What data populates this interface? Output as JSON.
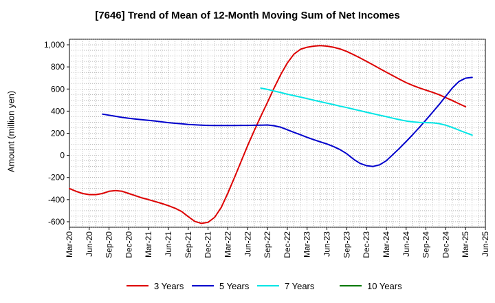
{
  "chart_data": {
    "type": "line",
    "title": "[7646]  Trend of Mean of 12-Month Moving Sum of Net Incomes",
    "ylabel": "Amount (million yen)",
    "xlabel": "",
    "ylim": [
      -650,
      1050
    ],
    "yticks": [
      -600,
      -400,
      -200,
      0,
      200,
      400,
      600,
      800,
      "1,000"
    ],
    "ytick_values": [
      -600,
      -400,
      -200,
      0,
      200,
      400,
      600,
      800,
      1000
    ],
    "xticks": [
      "Mar-20",
      "Jun-20",
      "Sep-20",
      "Dec-20",
      "Mar-21",
      "Jun-21",
      "Sep-21",
      "Dec-21",
      "Mar-22",
      "Jun-22",
      "Sep-22",
      "Dec-22",
      "Mar-23",
      "Jun-23",
      "Sep-23",
      "Dec-23",
      "Mar-24",
      "Jun-24",
      "Sep-24",
      "Dec-24",
      "Mar-25",
      "Jun-25"
    ],
    "grid": true,
    "legend_position": "bottom",
    "series": [
      {
        "name": "3 Years",
        "color": "#dd0000",
        "points": [
          [
            "Mar-20",
            -300
          ],
          [
            "Apr-20",
            -325
          ],
          [
            "May-20",
            -345
          ],
          [
            "Jun-20",
            -355
          ],
          [
            "Jul-20",
            -355
          ],
          [
            "Aug-20",
            -345
          ],
          [
            "Sep-20",
            -325
          ],
          [
            "Oct-20",
            -318
          ],
          [
            "Nov-20",
            -325
          ],
          [
            "Dec-20",
            -345
          ],
          [
            "Jan-21",
            -365
          ],
          [
            "Feb-21",
            -385
          ],
          [
            "Mar-21",
            -400
          ],
          [
            "Apr-21",
            -418
          ],
          [
            "May-21",
            -435
          ],
          [
            "Jun-21",
            -455
          ],
          [
            "Jul-21",
            -478
          ],
          [
            "Aug-21",
            -508
          ],
          [
            "Sep-21",
            -555
          ],
          [
            "Oct-21",
            -598
          ],
          [
            "Nov-21",
            -615
          ],
          [
            "Dec-21",
            -605
          ],
          [
            "Jan-22",
            -560
          ],
          [
            "Feb-22",
            -470
          ],
          [
            "Mar-22",
            -340
          ],
          [
            "Apr-22",
            -200
          ],
          [
            "May-22",
            -55
          ],
          [
            "Jun-22",
            90
          ],
          [
            "Jul-22",
            225
          ],
          [
            "Aug-22",
            355
          ],
          [
            "Sep-22",
            480
          ],
          [
            "Oct-22",
            610
          ],
          [
            "Nov-22",
            730
          ],
          [
            "Dec-22",
            835
          ],
          [
            "Jan-23",
            915
          ],
          [
            "Feb-23",
            960
          ],
          [
            "Mar-23",
            978
          ],
          [
            "Apr-23",
            988
          ],
          [
            "May-23",
            992
          ],
          [
            "Jun-23",
            988
          ],
          [
            "Jul-23",
            978
          ],
          [
            "Aug-23",
            962
          ],
          [
            "Sep-23",
            940
          ],
          [
            "Oct-23",
            912
          ],
          [
            "Nov-23",
            882
          ],
          [
            "Dec-23",
            850
          ],
          [
            "Jan-24",
            818
          ],
          [
            "Feb-24",
            785
          ],
          [
            "Mar-24",
            752
          ],
          [
            "Apr-24",
            720
          ],
          [
            "May-24",
            688
          ],
          [
            "Jun-24",
            658
          ],
          [
            "Jul-24",
            632
          ],
          [
            "Aug-24",
            610
          ],
          [
            "Sep-24",
            590
          ],
          [
            "Oct-24",
            570
          ],
          [
            "Nov-24",
            548
          ],
          [
            "Dec-24",
            522
          ],
          [
            "Jan-25",
            495
          ],
          [
            "Feb-25",
            467
          ],
          [
            "Mar-25",
            440
          ]
        ]
      },
      {
        "name": "5 Years",
        "color": "#0000cc",
        "points": [
          [
            "Aug-20",
            373
          ],
          [
            "Sep-20",
            363
          ],
          [
            "Oct-20",
            353
          ],
          [
            "Nov-20",
            343
          ],
          [
            "Dec-20",
            335
          ],
          [
            "Jan-21",
            328
          ],
          [
            "Feb-21",
            322
          ],
          [
            "Mar-21",
            317
          ],
          [
            "Apr-21",
            310
          ],
          [
            "May-21",
            303
          ],
          [
            "Jun-21",
            296
          ],
          [
            "Jul-21",
            290
          ],
          [
            "Aug-21",
            285
          ],
          [
            "Sep-21",
            280
          ],
          [
            "Oct-21",
            276
          ],
          [
            "Nov-21",
            273
          ],
          [
            "Dec-21",
            271
          ],
          [
            "Jan-22",
            270
          ],
          [
            "Feb-22",
            270
          ],
          [
            "Mar-22",
            270
          ],
          [
            "Apr-22",
            270
          ],
          [
            "May-22",
            271
          ],
          [
            "Jun-22",
            271
          ],
          [
            "Jul-22",
            272
          ],
          [
            "Aug-22",
            273
          ],
          [
            "Sep-22",
            275
          ],
          [
            "Oct-22",
            268
          ],
          [
            "Nov-22",
            255
          ],
          [
            "Dec-22",
            232
          ],
          [
            "Jan-23",
            208
          ],
          [
            "Feb-23",
            186
          ],
          [
            "Mar-23",
            163
          ],
          [
            "Apr-23",
            142
          ],
          [
            "May-23",
            122
          ],
          [
            "Jun-23",
            103
          ],
          [
            "Jul-23",
            80
          ],
          [
            "Aug-23",
            52
          ],
          [
            "Sep-23",
            15
          ],
          [
            "Oct-23",
            -33
          ],
          [
            "Nov-23",
            -72
          ],
          [
            "Dec-23",
            -93
          ],
          [
            "Jan-24",
            -100
          ],
          [
            "Feb-24",
            -85
          ],
          [
            "Mar-24",
            -48
          ],
          [
            "Apr-24",
            8
          ],
          [
            "May-24",
            65
          ],
          [
            "Jun-24",
            125
          ],
          [
            "Jul-24",
            188
          ],
          [
            "Aug-24",
            253
          ],
          [
            "Sep-24",
            320
          ],
          [
            "Oct-24",
            390
          ],
          [
            "Nov-24",
            460
          ],
          [
            "Dec-24",
            535
          ],
          [
            "Jan-25",
            610
          ],
          [
            "Feb-25",
            668
          ],
          [
            "Mar-25",
            698
          ],
          [
            "Apr-25",
            705
          ]
        ]
      },
      {
        "name": "7 Years",
        "color": "#00e5e5",
        "points": [
          [
            "Aug-22",
            608
          ],
          [
            "Sep-22",
            596
          ],
          [
            "Oct-22",
            582
          ],
          [
            "Nov-22",
            568
          ],
          [
            "Dec-22",
            553
          ],
          [
            "Jan-23",
            540
          ],
          [
            "Feb-23",
            527
          ],
          [
            "Mar-23",
            513
          ],
          [
            "Apr-23",
            499
          ],
          [
            "May-23",
            486
          ],
          [
            "Jun-23",
            472
          ],
          [
            "Jul-23",
            459
          ],
          [
            "Aug-23",
            445
          ],
          [
            "Sep-23",
            432
          ],
          [
            "Oct-23",
            418
          ],
          [
            "Nov-23",
            404
          ],
          [
            "Dec-23",
            390
          ],
          [
            "Jan-24",
            377
          ],
          [
            "Feb-24",
            363
          ],
          [
            "Mar-24",
            350
          ],
          [
            "Apr-24",
            336
          ],
          [
            "May-24",
            322
          ],
          [
            "Jun-24",
            311
          ],
          [
            "Jul-24",
            303
          ],
          [
            "Aug-24",
            298
          ],
          [
            "Sep-24",
            296
          ],
          [
            "Oct-24",
            294
          ],
          [
            "Nov-24",
            287
          ],
          [
            "Dec-24",
            273
          ],
          [
            "Jan-25",
            252
          ],
          [
            "Feb-25",
            228
          ],
          [
            "Mar-25",
            205
          ],
          [
            "Apr-25",
            183
          ]
        ]
      },
      {
        "name": "10 Years",
        "color": "#007700",
        "points": []
      }
    ]
  }
}
